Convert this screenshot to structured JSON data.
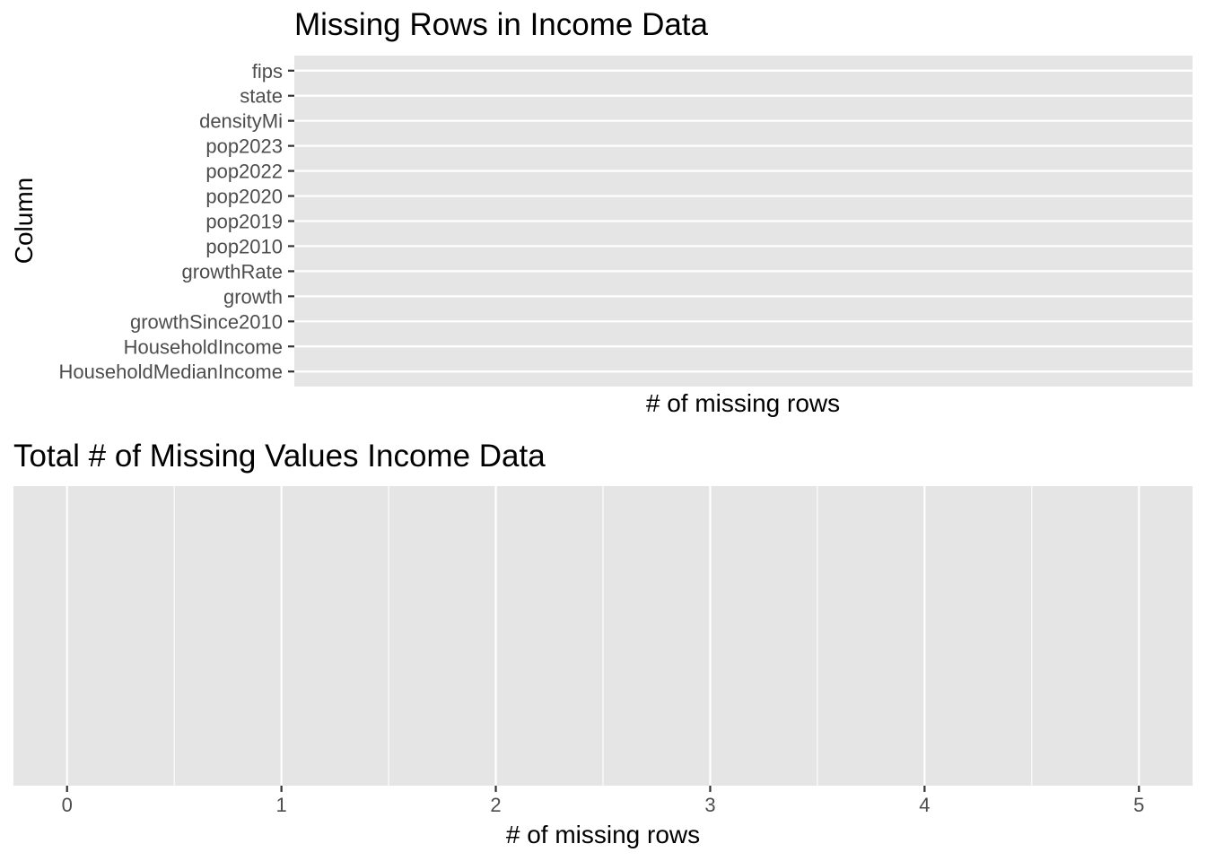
{
  "chart_data": [
    {
      "type": "bar",
      "orientation": "horizontal",
      "title": "Missing Rows in Income Data",
      "xlabel": "# of missing rows",
      "ylabel": "Column",
      "categories": [
        "fips",
        "state",
        "densityMi",
        "pop2023",
        "pop2022",
        "pop2020",
        "pop2019",
        "pop2010",
        "growthRate",
        "growth",
        "growthSince2010",
        "HouseholdIncome",
        "HouseholdMedianIncome"
      ],
      "values": [
        0,
        0,
        0,
        0,
        0,
        0,
        0,
        0,
        0,
        0,
        0,
        0,
        0
      ],
      "grid": true,
      "legend": "none",
      "colors": {
        "panel": "#e5e5e5",
        "grid": "#ffffff",
        "text": "#000000",
        "tick_text": "#4d4d4d",
        "tick": "#333333"
      }
    },
    {
      "type": "bar",
      "title": "Total # of Missing Values Income Data",
      "xlabel": "# of missing rows",
      "ylabel": "",
      "x_ticks": [
        "0",
        "1",
        "2",
        "3",
        "4",
        "5"
      ],
      "xlim": [
        -0.25,
        5.25
      ],
      "values": [],
      "grid": true,
      "legend": "none",
      "colors": {
        "panel": "#e5e5e5",
        "grid": "#ffffff",
        "text": "#000000",
        "tick_text": "#4d4d4d",
        "tick": "#333333"
      }
    }
  ]
}
